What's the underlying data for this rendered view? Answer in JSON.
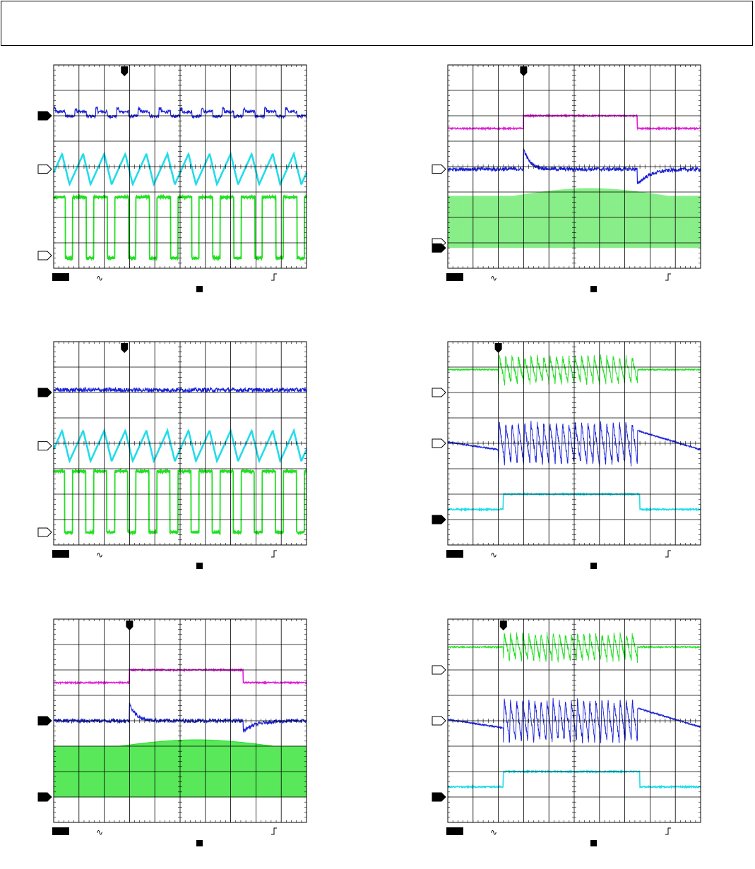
{
  "header": {
    "text": ""
  },
  "colors": {
    "blue": "#1a22d8",
    "cyan": "#22dcea",
    "green": "#22e022",
    "magenta": "#e020d8",
    "grid": "#000000",
    "marker": "#000000"
  },
  "chart_data": [
    {
      "type": "line",
      "panel": "top-left",
      "title": "",
      "grid": true,
      "divisions": {
        "x": 10,
        "y": 8
      },
      "trigger_marker_div": 2.8,
      "channel_markers": [
        {
          "level_div": 6.0,
          "style": "filled"
        },
        {
          "level_div": 3.9,
          "style": "hollow"
        },
        {
          "level_div": 0.5,
          "style": "hollow"
        }
      ],
      "series": [
        {
          "color": "blue",
          "shape": "ripple",
          "base_div": 6.1,
          "amp_div": 0.3,
          "periods": 12
        },
        {
          "color": "cyan",
          "shape": "triangle",
          "base_div": 3.9,
          "amp_div": 0.6,
          "periods": 12
        },
        {
          "color": "green",
          "shape": "square",
          "low_div": 0.4,
          "high_div": 2.8,
          "periods": 12,
          "duty": 0.65
        }
      ],
      "footer": {
        "box": true,
        "ac_icon": true,
        "edge_icon": true,
        "trigger_box": true
      }
    },
    {
      "type": "line",
      "panel": "top-right",
      "title": "",
      "grid": true,
      "divisions": {
        "x": 10,
        "y": 8
      },
      "trigger_marker_div": 3.0,
      "channel_markers": [
        {
          "level_div": 3.9,
          "style": "hollow"
        },
        {
          "level_div": 1.0,
          "style": "hollow"
        },
        {
          "level_div": 0.8,
          "style": "filled"
        }
      ],
      "series": [
        {
          "color": "magenta",
          "shape": "step",
          "low_div": 5.5,
          "high_div": 6.0,
          "t_on": 3.0,
          "t_off": 7.5
        },
        {
          "color": "blue",
          "shape": "transient",
          "base_div": 3.9,
          "t_on": 3.0,
          "t_off": 7.5,
          "spike_up": 0.8,
          "spike_down": -0.6
        },
        {
          "color": "green",
          "shape": "band",
          "low_div": 0.8,
          "high_div": 2.85,
          "bulge_div": 0.3,
          "t_on": 3.0,
          "t_off": 7.5,
          "sparse": true
        }
      ],
      "footer": {
        "box": true,
        "ac_icon": true,
        "edge_icon": true,
        "trigger_box": true
      }
    },
    {
      "type": "line",
      "panel": "middle-left",
      "title": "",
      "grid": true,
      "divisions": {
        "x": 10,
        "y": 8
      },
      "trigger_marker_div": 2.8,
      "channel_markers": [
        {
          "level_div": 6.0,
          "style": "filled"
        },
        {
          "level_div": 3.9,
          "style": "hollow"
        },
        {
          "level_div": 0.5,
          "style": "hollow"
        }
      ],
      "series": [
        {
          "color": "blue",
          "shape": "noise",
          "base_div": 6.1,
          "amp_div": 0.08
        },
        {
          "color": "cyan",
          "shape": "triangle",
          "base_div": 3.9,
          "amp_div": 0.6,
          "periods": 12
        },
        {
          "color": "green",
          "shape": "square",
          "low_div": 0.5,
          "high_div": 2.9,
          "periods": 12,
          "duty": 0.62
        }
      ],
      "footer": {
        "box": true,
        "ac_icon": true,
        "edge_icon": true,
        "trigger_box": true
      }
    },
    {
      "type": "line",
      "panel": "middle-right",
      "title": "",
      "grid": true,
      "divisions": {
        "x": 10,
        "y": 8
      },
      "trigger_marker_div": 2.0,
      "channel_markers": [
        {
          "level_div": 6.0,
          "style": "hollow"
        },
        {
          "level_div": 4.0,
          "style": "hollow"
        },
        {
          "level_div": 1.0,
          "style": "filled"
        }
      ],
      "series": [
        {
          "color": "green",
          "shape": "burst",
          "base_div": 6.9,
          "amp_div": 0.5,
          "t_start": 2.0,
          "t_end": 7.5,
          "count": 22
        },
        {
          "color": "blue",
          "shape": "burst_ramp",
          "base_div": 4.0,
          "amp_div": 0.8,
          "t_start": 2.0,
          "t_end": 7.5,
          "count": 22
        },
        {
          "color": "cyan",
          "shape": "step",
          "low_div": 1.4,
          "high_div": 2.0,
          "t_on": 2.2,
          "t_off": 7.6
        }
      ],
      "footer": {
        "box": true,
        "ac_icon": true,
        "edge_icon": true,
        "trigger_box": true
      }
    },
    {
      "type": "line",
      "panel": "bottom-left",
      "title": "",
      "grid": true,
      "divisions": {
        "x": 10,
        "y": 8
      },
      "trigger_marker_div": 3.0,
      "channel_markers": [
        {
          "level_div": 4.0,
          "style": "filled"
        },
        {
          "level_div": 1.0,
          "style": "filled"
        }
      ],
      "series": [
        {
          "color": "magenta",
          "shape": "step",
          "low_div": 5.5,
          "high_div": 6.0,
          "t_on": 3.0,
          "t_off": 7.5
        },
        {
          "color": "blue",
          "shape": "transient",
          "base_div": 4.0,
          "t_on": 3.0,
          "t_off": 7.5,
          "spike_up": 0.7,
          "spike_down": -0.4
        },
        {
          "color": "green",
          "shape": "band",
          "low_div": 1.0,
          "high_div": 3.0,
          "bulge_div": 0.25,
          "t_on": 3.0,
          "t_off": 7.5,
          "sparse": false
        }
      ],
      "footer": {
        "box": true,
        "ac_icon": true,
        "edge_icon": true,
        "trigger_box": true
      }
    },
    {
      "type": "line",
      "panel": "bottom-right",
      "title": "",
      "grid": true,
      "divisions": {
        "x": 10,
        "y": 8
      },
      "trigger_marker_div": 2.2,
      "channel_markers": [
        {
          "level_div": 6.0,
          "style": "hollow"
        },
        {
          "level_div": 4.0,
          "style": "hollow"
        },
        {
          "level_div": 1.0,
          "style": "filled"
        }
      ],
      "series": [
        {
          "color": "green",
          "shape": "burst",
          "base_div": 6.9,
          "amp_div": 0.5,
          "t_start": 2.2,
          "t_end": 7.5,
          "count": 22
        },
        {
          "color": "blue",
          "shape": "burst_ramp",
          "base_div": 4.0,
          "amp_div": 0.8,
          "t_start": 2.2,
          "t_end": 7.5,
          "count": 22
        },
        {
          "color": "cyan",
          "shape": "step",
          "low_div": 1.4,
          "high_div": 2.0,
          "t_on": 2.2,
          "t_off": 7.6
        }
      ],
      "footer": {
        "box": true,
        "ac_icon": true,
        "edge_icon": true,
        "trigger_box": true
      }
    }
  ]
}
